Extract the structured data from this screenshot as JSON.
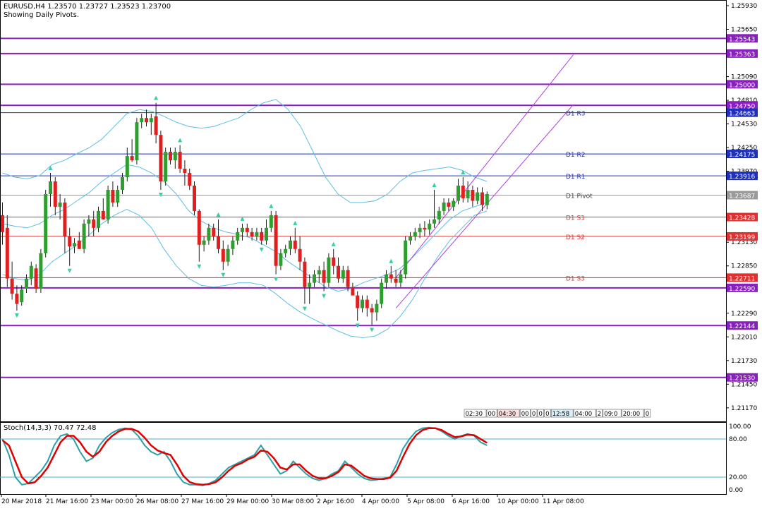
{
  "header": {
    "symbol_line": "EURUSD,H4  1.23570 1.23727 1.23523 1.23700",
    "pivot_note": "Showing Daily Pivots."
  },
  "stoch_header": "Stoch(14,3,3) 70.47 72.48",
  "colors": {
    "bull": "#2e9e2e",
    "bear": "#e02020",
    "bollinger": "#5bbfe6",
    "channel": "#b040e0",
    "level_purple": "#8a1fbf",
    "pivot_blue": "#1f2fbf",
    "pivot_red": "#e03030",
    "fractal": "#33d0a0",
    "stoch_main": "#2aa0a8",
    "stoch_signal": "#e00000",
    "stoch_level": "#48b0c8"
  },
  "chart_data": {
    "type": "candlestick",
    "symbol": "EURUSD",
    "timeframe": "H4",
    "price_axis": {
      "range": [
        1.2101,
        1.2598
      ],
      "ticks": [
        "1.25930",
        "1.25650",
        "1.25370",
        "1.25090",
        "1.24810",
        "1.24530",
        "1.24250",
        "1.23970",
        "1.23690",
        "1.23410",
        "1.23130",
        "1.22850",
        "1.22570",
        "1.22290",
        "1.22010",
        "1.21730",
        "1.21450",
        "1.21170"
      ]
    },
    "time_axis": {
      "labels": [
        "20 Mar 2018",
        "21 Mar 16:00",
        "23 Mar 00:00",
        "26 Mar 08:00",
        "27 Mar 16:00",
        "29 Mar 00:00",
        "30 Mar 08:00",
        "2 Apr 16:00",
        "4 Apr 00:00",
        "5 Apr 08:00",
        "6 Apr 16:00",
        "10 Apr 00:00",
        "11 Apr 08:00"
      ]
    },
    "horizontal_levels": [
      {
        "price": 1.25543,
        "label": "1.25543",
        "kind": "purple"
      },
      {
        "price": 1.25363,
        "label": "1.25363",
        "kind": "purple"
      },
      {
        "price": 1.25,
        "label": "1.25000",
        "kind": "purple"
      },
      {
        "price": 1.2475,
        "label": "1.24750",
        "kind": "purple"
      },
      {
        "price": 1.24663,
        "label": "1.24663",
        "kind": "blue",
        "name": "D1 R3"
      },
      {
        "price": 1.24175,
        "label": "1.24175",
        "kind": "blue",
        "name": "D1 R2"
      },
      {
        "price": 1.23916,
        "label": "1.23916",
        "kind": "blue",
        "name": "D1 R1"
      },
      {
        "price": 1.23687,
        "label": "1.23687",
        "kind": "grey",
        "name": "D1 Pivot"
      },
      {
        "price": 1.23428,
        "label": "1.23428",
        "kind": "red",
        "name": "D1 S1"
      },
      {
        "price": 1.23199,
        "label": "1.23199",
        "kind": "red",
        "name": "D1 S2"
      },
      {
        "price": 1.22711,
        "label": "1.22711",
        "kind": "red",
        "name": "D1 S3"
      },
      {
        "price": 1.2259,
        "label": "1.22590",
        "kind": "purple"
      },
      {
        "price": 1.22144,
        "label": "1.22144",
        "kind": "purple"
      },
      {
        "price": 1.2153,
        "label": "1.21530",
        "kind": "purple"
      }
    ],
    "candles": [
      {
        "o": 1.2345,
        "h": 1.236,
        "l": 1.231,
        "c": 1.2325
      },
      {
        "o": 1.233,
        "h": 1.2345,
        "l": 1.226,
        "c": 1.227
      },
      {
        "o": 1.227,
        "h": 1.229,
        "l": 1.2245,
        "c": 1.2252
      },
      {
        "o": 1.2252,
        "h": 1.2262,
        "l": 1.2232,
        "c": 1.224
      },
      {
        "o": 1.2242,
        "h": 1.2262,
        "l": 1.2238,
        "c": 1.2257
      },
      {
        "o": 1.2258,
        "h": 1.2275,
        "l": 1.2253,
        "c": 1.227
      },
      {
        "o": 1.227,
        "h": 1.229,
        "l": 1.2262,
        "c": 1.2285
      },
      {
        "o": 1.2282,
        "h": 1.2287,
        "l": 1.2253,
        "c": 1.2258
      },
      {
        "o": 1.2258,
        "h": 1.2305,
        "l": 1.2253,
        "c": 1.23
      },
      {
        "o": 1.23,
        "h": 1.2375,
        "l": 1.2295,
        "c": 1.237
      },
      {
        "o": 1.237,
        "h": 1.2395,
        "l": 1.2355,
        "c": 1.2385
      },
      {
        "o": 1.2385,
        "h": 1.239,
        "l": 1.2345,
        "c": 1.2355
      },
      {
        "o": 1.2355,
        "h": 1.237,
        "l": 1.234,
        "c": 1.236
      },
      {
        "o": 1.236,
        "h": 1.2365,
        "l": 1.23,
        "c": 1.232
      },
      {
        "o": 1.232,
        "h": 1.233,
        "l": 1.2285,
        "c": 1.2308
      },
      {
        "o": 1.2308,
        "h": 1.2318,
        "l": 1.23,
        "c": 1.2312
      },
      {
        "o": 1.2315,
        "h": 1.2325,
        "l": 1.2305,
        "c": 1.2305
      },
      {
        "o": 1.2305,
        "h": 1.234,
        "l": 1.23,
        "c": 1.2335
      },
      {
        "o": 1.2335,
        "h": 1.2345,
        "l": 1.232,
        "c": 1.234
      },
      {
        "o": 1.234,
        "h": 1.235,
        "l": 1.232,
        "c": 1.233
      },
      {
        "o": 1.233,
        "h": 1.2355,
        "l": 1.2325,
        "c": 1.235
      },
      {
        "o": 1.235,
        "h": 1.2365,
        "l": 1.234,
        "c": 1.234
      },
      {
        "o": 1.234,
        "h": 1.238,
        "l": 1.2335,
        "c": 1.2375
      },
      {
        "o": 1.2375,
        "h": 1.2385,
        "l": 1.2355,
        "c": 1.236
      },
      {
        "o": 1.236,
        "h": 1.238,
        "l": 1.2355,
        "c": 1.2375
      },
      {
        "o": 1.2375,
        "h": 1.2395,
        "l": 1.237,
        "c": 1.239
      },
      {
        "o": 1.239,
        "h": 1.2425,
        "l": 1.2385,
        "c": 1.2415
      },
      {
        "o": 1.2415,
        "h": 1.2435,
        "l": 1.2408,
        "c": 1.241
      },
      {
        "o": 1.241,
        "h": 1.246,
        "l": 1.2405,
        "c": 1.2455
      },
      {
        "o": 1.2455,
        "h": 1.2465,
        "l": 1.2448,
        "c": 1.246
      },
      {
        "o": 1.246,
        "h": 1.247,
        "l": 1.245,
        "c": 1.2455
      },
      {
        "o": 1.2455,
        "h": 1.2465,
        "l": 1.244,
        "c": 1.246
      },
      {
        "o": 1.2462,
        "h": 1.2478,
        "l": 1.243,
        "c": 1.244
      },
      {
        "o": 1.244,
        "h": 1.2445,
        "l": 1.2375,
        "c": 1.2385
      },
      {
        "o": 1.2385,
        "h": 1.2425,
        "l": 1.238,
        "c": 1.242
      },
      {
        "o": 1.242,
        "h": 1.2425,
        "l": 1.2405,
        "c": 1.241
      },
      {
        "o": 1.241,
        "h": 1.2425,
        "l": 1.24,
        "c": 1.242
      },
      {
        "o": 1.242,
        "h": 1.2428,
        "l": 1.2395,
        "c": 1.24
      },
      {
        "o": 1.24,
        "h": 1.241,
        "l": 1.238,
        "c": 1.2395
      },
      {
        "o": 1.2395,
        "h": 1.24,
        "l": 1.2375,
        "c": 1.238
      },
      {
        "o": 1.238,
        "h": 1.2385,
        "l": 1.2345,
        "c": 1.235
      },
      {
        "o": 1.235,
        "h": 1.2352,
        "l": 1.229,
        "c": 1.231
      },
      {
        "o": 1.231,
        "h": 1.232,
        "l": 1.2302,
        "c": 1.2315
      },
      {
        "o": 1.2315,
        "h": 1.2335,
        "l": 1.231,
        "c": 1.233
      },
      {
        "o": 1.233,
        "h": 1.2335,
        "l": 1.2315,
        "c": 1.232
      },
      {
        "o": 1.232,
        "h": 1.234,
        "l": 1.23,
        "c": 1.2305
      },
      {
        "o": 1.2305,
        "h": 1.2315,
        "l": 1.228,
        "c": 1.229
      },
      {
        "o": 1.229,
        "h": 1.231,
        "l": 1.2285,
        "c": 1.2305
      },
      {
        "o": 1.2305,
        "h": 1.232,
        "l": 1.2298,
        "c": 1.2315
      },
      {
        "o": 1.2315,
        "h": 1.233,
        "l": 1.231,
        "c": 1.2325
      },
      {
        "o": 1.2325,
        "h": 1.2335,
        "l": 1.2315,
        "c": 1.233
      },
      {
        "o": 1.233,
        "h": 1.2335,
        "l": 1.232,
        "c": 1.2325
      },
      {
        "o": 1.2325,
        "h": 1.233,
        "l": 1.2315,
        "c": 1.232
      },
      {
        "o": 1.232,
        "h": 1.233,
        "l": 1.2315,
        "c": 1.2325
      },
      {
        "o": 1.2325,
        "h": 1.233,
        "l": 1.231,
        "c": 1.2315
      },
      {
        "o": 1.2315,
        "h": 1.234,
        "l": 1.231,
        "c": 1.233
      },
      {
        "o": 1.233,
        "h": 1.235,
        "l": 1.2325,
        "c": 1.2345
      },
      {
        "o": 1.2345,
        "h": 1.235,
        "l": 1.2275,
        "c": 1.2285
      },
      {
        "o": 1.2285,
        "h": 1.2305,
        "l": 1.228,
        "c": 1.23
      },
      {
        "o": 1.23,
        "h": 1.231,
        "l": 1.2295,
        "c": 1.2305
      },
      {
        "o": 1.2305,
        "h": 1.232,
        "l": 1.2298,
        "c": 1.2315
      },
      {
        "o": 1.2315,
        "h": 1.233,
        "l": 1.23,
        "c": 1.2305
      },
      {
        "o": 1.2305,
        "h": 1.232,
        "l": 1.228,
        "c": 1.229
      },
      {
        "o": 1.229,
        "h": 1.2295,
        "l": 1.224,
        "c": 1.226
      },
      {
        "o": 1.226,
        "h": 1.2275,
        "l": 1.224,
        "c": 1.2265
      },
      {
        "o": 1.2265,
        "h": 1.228,
        "l": 1.226,
        "c": 1.2275
      },
      {
        "o": 1.2275,
        "h": 1.2285,
        "l": 1.2265,
        "c": 1.228
      },
      {
        "o": 1.228,
        "h": 1.229,
        "l": 1.2255,
        "c": 1.2265
      },
      {
        "o": 1.2265,
        "h": 1.23,
        "l": 1.226,
        "c": 1.2295
      },
      {
        "o": 1.2295,
        "h": 1.2305,
        "l": 1.2275,
        "c": 1.2285
      },
      {
        "o": 1.2285,
        "h": 1.2295,
        "l": 1.2265,
        "c": 1.227
      },
      {
        "o": 1.227,
        "h": 1.2285,
        "l": 1.2265,
        "c": 1.228
      },
      {
        "o": 1.228,
        "h": 1.2285,
        "l": 1.2255,
        "c": 1.226
      },
      {
        "o": 1.226,
        "h": 1.2265,
        "l": 1.225,
        "c": 1.225
      },
      {
        "o": 1.225,
        "h": 1.2255,
        "l": 1.222,
        "c": 1.2235
      },
      {
        "o": 1.2235,
        "h": 1.225,
        "l": 1.223,
        "c": 1.2245
      },
      {
        "o": 1.2245,
        "h": 1.225,
        "l": 1.2225,
        "c": 1.2235
      },
      {
        "o": 1.2235,
        "h": 1.224,
        "l": 1.2215,
        "c": 1.223
      },
      {
        "o": 1.223,
        "h": 1.2245,
        "l": 1.222,
        "c": 1.224
      },
      {
        "o": 1.224,
        "h": 1.227,
        "l": 1.2235,
        "c": 1.2265
      },
      {
        "o": 1.2265,
        "h": 1.228,
        "l": 1.2258,
        "c": 1.2275
      },
      {
        "o": 1.2275,
        "h": 1.2285,
        "l": 1.2265,
        "c": 1.227
      },
      {
        "o": 1.227,
        "h": 1.228,
        "l": 1.226,
        "c": 1.2265
      },
      {
        "o": 1.2265,
        "h": 1.228,
        "l": 1.226,
        "c": 1.2275
      },
      {
        "o": 1.2275,
        "h": 1.232,
        "l": 1.227,
        "c": 1.2315
      },
      {
        "o": 1.2315,
        "h": 1.2325,
        "l": 1.231,
        "c": 1.232
      },
      {
        "o": 1.232,
        "h": 1.233,
        "l": 1.2315,
        "c": 1.2325
      },
      {
        "o": 1.2325,
        "h": 1.2335,
        "l": 1.2318,
        "c": 1.233
      },
      {
        "o": 1.233,
        "h": 1.2338,
        "l": 1.232,
        "c": 1.2328
      },
      {
        "o": 1.2328,
        "h": 1.234,
        "l": 1.2322,
        "c": 1.2335
      },
      {
        "o": 1.2335,
        "h": 1.2375,
        "l": 1.233,
        "c": 1.234
      },
      {
        "o": 1.234,
        "h": 1.2355,
        "l": 1.2335,
        "c": 1.235
      },
      {
        "o": 1.235,
        "h": 1.2365,
        "l": 1.2345,
        "c": 1.236
      },
      {
        "o": 1.236,
        "h": 1.2365,
        "l": 1.235,
        "c": 1.2355
      },
      {
        "o": 1.2355,
        "h": 1.2365,
        "l": 1.235,
        "c": 1.2362
      },
      {
        "o": 1.2362,
        "h": 1.2388,
        "l": 1.2358,
        "c": 1.238
      },
      {
        "o": 1.238,
        "h": 1.239,
        "l": 1.236,
        "c": 1.2365
      },
      {
        "o": 1.2365,
        "h": 1.2385,
        "l": 1.236,
        "c": 1.2375
      },
      {
        "o": 1.2375,
        "h": 1.238,
        "l": 1.2355,
        "c": 1.2362
      },
      {
        "o": 1.2362,
        "h": 1.2378,
        "l": 1.2358,
        "c": 1.2372
      },
      {
        "o": 1.2372,
        "h": 1.2378,
        "l": 1.235,
        "c": 1.2357
      },
      {
        "o": 1.2357,
        "h": 1.2373,
        "l": 1.2352,
        "c": 1.237
      }
    ],
    "bollinger_bands": {
      "upper": [
        1.2395,
        1.239,
        1.2388,
        1.2392,
        1.2405,
        1.241,
        1.2418,
        1.2425,
        1.2435,
        1.245,
        1.2465,
        1.247,
        1.2468,
        1.2462,
        1.2455,
        1.245,
        1.2448,
        1.245,
        1.2455,
        1.246,
        1.247,
        1.2478,
        1.2482,
        1.247,
        1.245,
        1.242,
        1.239,
        1.237,
        1.236,
        1.236,
        1.2362,
        1.237,
        1.2385,
        1.2395,
        1.2398,
        1.24,
        1.2402,
        1.2398,
        1.239,
        1.2385
      ],
      "middle": [
        1.2335,
        1.2332,
        1.233,
        1.2335,
        1.2345,
        1.2352,
        1.2362,
        1.2372,
        1.2385,
        1.2395,
        1.2405,
        1.2402,
        1.2395,
        1.2385,
        1.237,
        1.235,
        1.2338,
        1.233,
        1.2325,
        1.2322,
        1.2318,
        1.231,
        1.2302,
        1.229,
        1.228,
        1.227,
        1.226,
        1.2255,
        1.2258,
        1.2265,
        1.227,
        1.2275,
        1.2282,
        1.2295,
        1.231,
        1.2325,
        1.234,
        1.235,
        1.2355,
        1.236
      ],
      "lower": [
        1.2275,
        1.227,
        1.2268,
        1.2275,
        1.229,
        1.23,
        1.231,
        1.2322,
        1.2335,
        1.2345,
        1.2352,
        1.2345,
        1.233,
        1.2305,
        1.2285,
        1.227,
        1.2262,
        1.226,
        1.2262,
        1.2265,
        1.2265,
        1.2262,
        1.2252,
        1.224,
        1.223,
        1.2222,
        1.2215,
        1.2208,
        1.2202,
        1.22,
        1.2202,
        1.221,
        1.2225,
        1.2245,
        1.227,
        1.2295,
        1.2315,
        1.233,
        1.2345,
        1.235
      ]
    },
    "channel_lines": [
      {
        "from": [
          1.2235,
          82
        ],
        "to": [
          1.2476,
          119
        ]
      },
      {
        "from": [
          1.2271,
          82
        ],
        "to": [
          1.2535,
          119
        ]
      }
    ],
    "stochastic": {
      "name": "Stoch(14,3,3)",
      "main_value": "70.47",
      "signal_value": "72.48",
      "levels": [
        80,
        20
      ],
      "axis_ticks": [
        "100.00",
        "80.00",
        "20.00",
        "0.00"
      ],
      "main": [
        80,
        55,
        20,
        8,
        10,
        20,
        30,
        45,
        70,
        85,
        88,
        80,
        60,
        45,
        50,
        70,
        82,
        90,
        95,
        97,
        95,
        85,
        70,
        60,
        55,
        60,
        45,
        25,
        12,
        8,
        8,
        7,
        10,
        15,
        25,
        35,
        40,
        45,
        50,
        55,
        70,
        55,
        40,
        25,
        30,
        45,
        35,
        25,
        18,
        15,
        18,
        25,
        30,
        45,
        35,
        25,
        18,
        15,
        16,
        18,
        20,
        40,
        65,
        80,
        92,
        97,
        98,
        97,
        92,
        85,
        80,
        85,
        88,
        85,
        75,
        70
      ],
      "signal": [
        78,
        70,
        45,
        20,
        10,
        12,
        22,
        35,
        55,
        75,
        85,
        85,
        75,
        60,
        52,
        60,
        75,
        85,
        92,
        96,
        96,
        92,
        82,
        70,
        62,
        58,
        55,
        40,
        22,
        12,
        9,
        8,
        9,
        12,
        20,
        30,
        38,
        42,
        48,
        52,
        62,
        60,
        50,
        35,
        32,
        40,
        40,
        30,
        22,
        18,
        18,
        22,
        28,
        40,
        38,
        30,
        22,
        18,
        17,
        17,
        19,
        30,
        52,
        72,
        86,
        94,
        97,
        97,
        94,
        88,
        83,
        84,
        87,
        86,
        80,
        74
      ]
    }
  },
  "volume_strip_labels": [
    "02:30",
    "00",
    "04:30",
    "00",
    "0",
    "0",
    "0",
    "12:58",
    "04:00",
    "2",
    "09:0",
    "20:00",
    "0"
  ]
}
